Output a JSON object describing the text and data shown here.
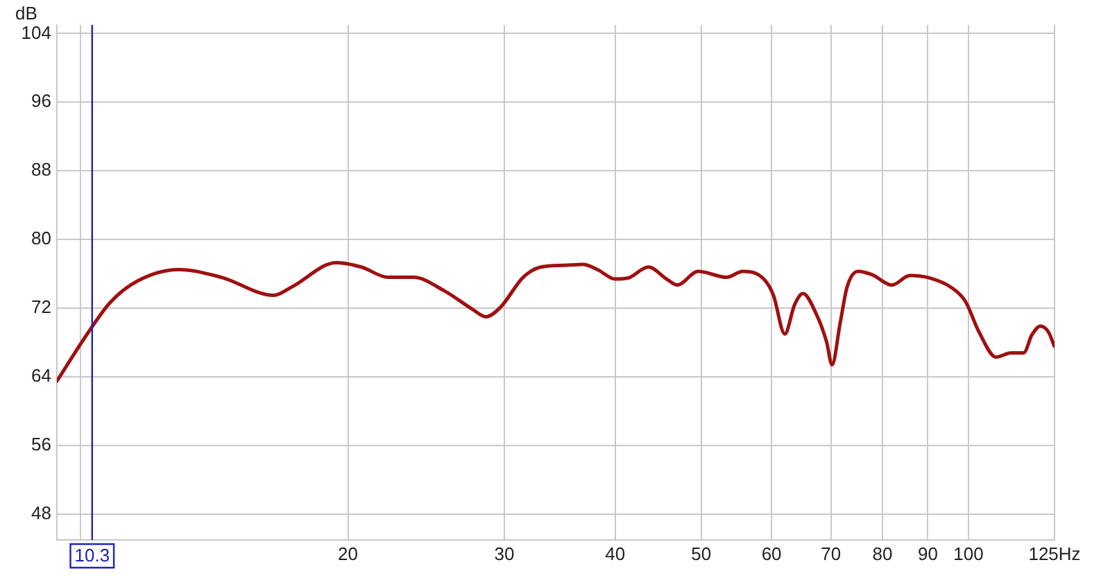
{
  "chart_data": {
    "type": "line",
    "ylabel": "dB",
    "x": [
      9.4,
      10.2,
      10.8,
      11.6,
      12.9,
      14.4,
      16.5,
      17.3,
      19.4,
      20.7,
      22.2,
      23.7,
      25.7,
      27.6,
      28.6,
      29.7,
      31.5,
      33.0,
      35.1,
      36.8,
      38.2,
      40.0,
      41.3,
      43.6,
      45.7,
      47.0,
      49.6,
      53.4,
      55.7,
      58.8,
      60.3,
      62.1,
      63.7,
      65.1,
      67.4,
      69.2,
      70.2,
      71.7,
      73.0,
      75.1,
      77.9,
      82.0,
      85.9,
      90.6,
      95.7,
      99.2,
      102.8,
      107.4,
      111.7,
      115.4,
      117.9,
      120.5,
      123.1,
      124.9
    ],
    "series": [
      {
        "color": "#a01010",
        "values": [
          63.5,
          69.2,
          72.7,
          75.2,
          76.5,
          75.6,
          73.5,
          74.5,
          77.3,
          76.8,
          75.6,
          75.6,
          74.0,
          71.9,
          71.0,
          72.1,
          75.6,
          76.8,
          77.0,
          77.1,
          76.5,
          75.4,
          75.5,
          76.8,
          75.4,
          74.7,
          76.3,
          75.6,
          76.3,
          75.4,
          73.5,
          69.0,
          72.4,
          73.7,
          71.3,
          68.1,
          65.4,
          70.3,
          74.5,
          76.3,
          75.9,
          74.7,
          75.8,
          75.5,
          74.4,
          72.8,
          69.2,
          66.3,
          66.8,
          66.8,
          68.9,
          69.9,
          69.2,
          67.6
        ]
      }
    ],
    "log": "x",
    "xlim": [
      9.4,
      125
    ],
    "xticks": [
      {
        "value": 10,
        "label": null
      },
      20,
      30,
      40,
      50,
      60,
      70,
      80,
      90,
      100,
      {
        "value": 125,
        "label": "125Hz"
      }
    ],
    "ylim": [
      45,
      105
    ],
    "yticks": [
      48,
      56,
      64,
      72,
      80,
      88,
      96,
      104
    ],
    "grid": true,
    "legend": false,
    "marker": "none",
    "line_style": "solid",
    "ref_lines": [
      {
        "axis": "x",
        "value": 10.3,
        "label": "10.3",
        "color": "#2020c0"
      }
    ]
  }
}
